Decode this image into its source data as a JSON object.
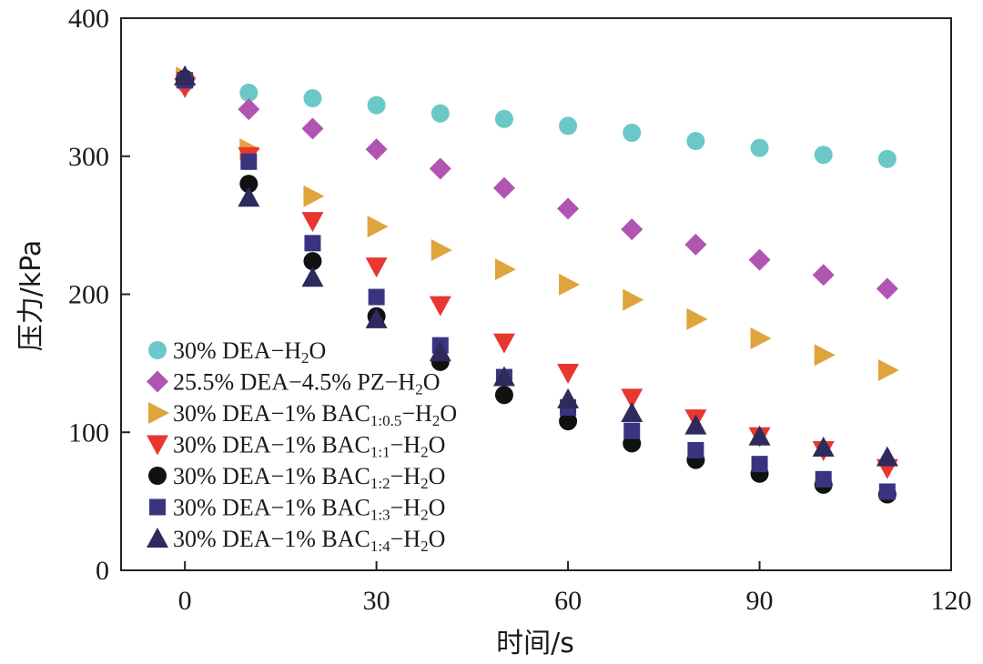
{
  "chart_data": {
    "type": "scatter",
    "title": "",
    "xlabel": "时间/s",
    "ylabel": "压力/kPa",
    "xlim": [
      -10,
      120
    ],
    "ylim": [
      0,
      400
    ],
    "xticks": [
      0,
      30,
      60,
      90,
      120
    ],
    "yticks": [
      0,
      100,
      200,
      300,
      400
    ],
    "legend_position": "bottom-left",
    "x": [
      0,
      10,
      20,
      30,
      40,
      50,
      60,
      70,
      80,
      90,
      100,
      110
    ],
    "series": [
      {
        "key": "dea",
        "name": "30% DEA-H2O",
        "legend": {
          "main": "30% DEA−H",
          "sub": "2",
          "tail": "O"
        },
        "marker": "circle",
        "color": "#6cc8c8",
        "values": [
          355,
          346,
          342,
          337,
          331,
          327,
          322,
          317,
          311,
          306,
          301,
          298
        ]
      },
      {
        "key": "pz",
        "name": "25.5% DEA-4.5% PZ-H2O",
        "legend": {
          "main": "25.5% DEA−4.5% PZ−H",
          "sub": "2",
          "tail": "O"
        },
        "marker": "diamond",
        "color": "#b155b3",
        "values": [
          352,
          334,
          320,
          305,
          291,
          277,
          262,
          247,
          236,
          225,
          214,
          204
        ]
      },
      {
        "key": "bac05",
        "name": "30% DEA-1% BAC1:0.5-H2O",
        "legend": {
          "main": "30% DEA−1% BAC",
          "sub": "1:0.5",
          "tail": "−H",
          "sub2": "2",
          "tail2": "O"
        },
        "marker": "triangle-right",
        "color": "#e0a43c",
        "values": [
          357,
          305,
          271,
          249,
          232,
          218,
          207,
          196,
          182,
          168,
          156,
          145
        ]
      },
      {
        "key": "bac1",
        "name": "30% DEA-1% BAC1:1-H2O",
        "legend": {
          "main": "30% DEA−1% BAC",
          "sub": "1:1",
          "tail": "−H",
          "sub2": "2",
          "tail2": "O"
        },
        "marker": "triangle-down",
        "color": "#e8372f",
        "values": [
          350,
          300,
          253,
          220,
          192,
          165,
          143,
          125,
          110,
          97,
          87,
          74
        ]
      },
      {
        "key": "bac2",
        "name": "30% DEA-1% BAC1:2-H2O",
        "legend": {
          "main": "30% DEA−1% BAC",
          "sub": "1:2",
          "tail": "−H",
          "sub2": "2",
          "tail2": "O"
        },
        "marker": "circle",
        "color": "#111111",
        "values": [
          356,
          280,
          224,
          184,
          151,
          127,
          108,
          92,
          80,
          70,
          62,
          55
        ]
      },
      {
        "key": "bac3",
        "name": "30% DEA-1% BAC1:3-H2O",
        "legend": {
          "main": "30% DEA−1% BAC",
          "sub": "1:3",
          "tail": "−H",
          "sub2": "2",
          "tail2": "O"
        },
        "marker": "square",
        "color": "#3a3480",
        "values": [
          355,
          296,
          237,
          198,
          163,
          140,
          118,
          101,
          87,
          77,
          66,
          57
        ]
      },
      {
        "key": "bac4",
        "name": "30% DEA-1% BAC1:4-H2O",
        "legend": {
          "main": "30% DEA−1% BAC",
          "sub": "1:4",
          "tail": "−H",
          "sub2": "2",
          "tail2": "O"
        },
        "marker": "triangle-up",
        "color": "#2e2a5c",
        "values": [
          358,
          270,
          212,
          182,
          158,
          140,
          124,
          114,
          105,
          97,
          89,
          82
        ]
      }
    ]
  }
}
